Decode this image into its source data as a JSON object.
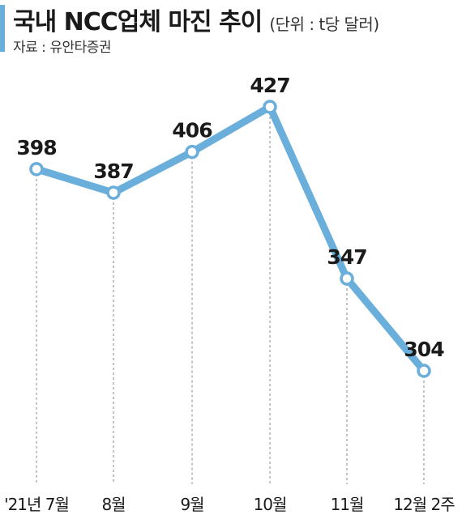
{
  "chart_data": {
    "type": "line",
    "title": "국내 NCC업체 마진 추이",
    "unit": "(단위 : t당 달러)",
    "source": "자료 : 유안타증권",
    "categories": [
      "'21년 7월",
      "8월",
      "9월",
      "10월",
      "11월",
      "12월 2주"
    ],
    "values": [
      398,
      387,
      406,
      427,
      347,
      304
    ],
    "ylim": [
      280,
      440
    ],
    "grid": false,
    "line_color": "#6aaedb"
  }
}
